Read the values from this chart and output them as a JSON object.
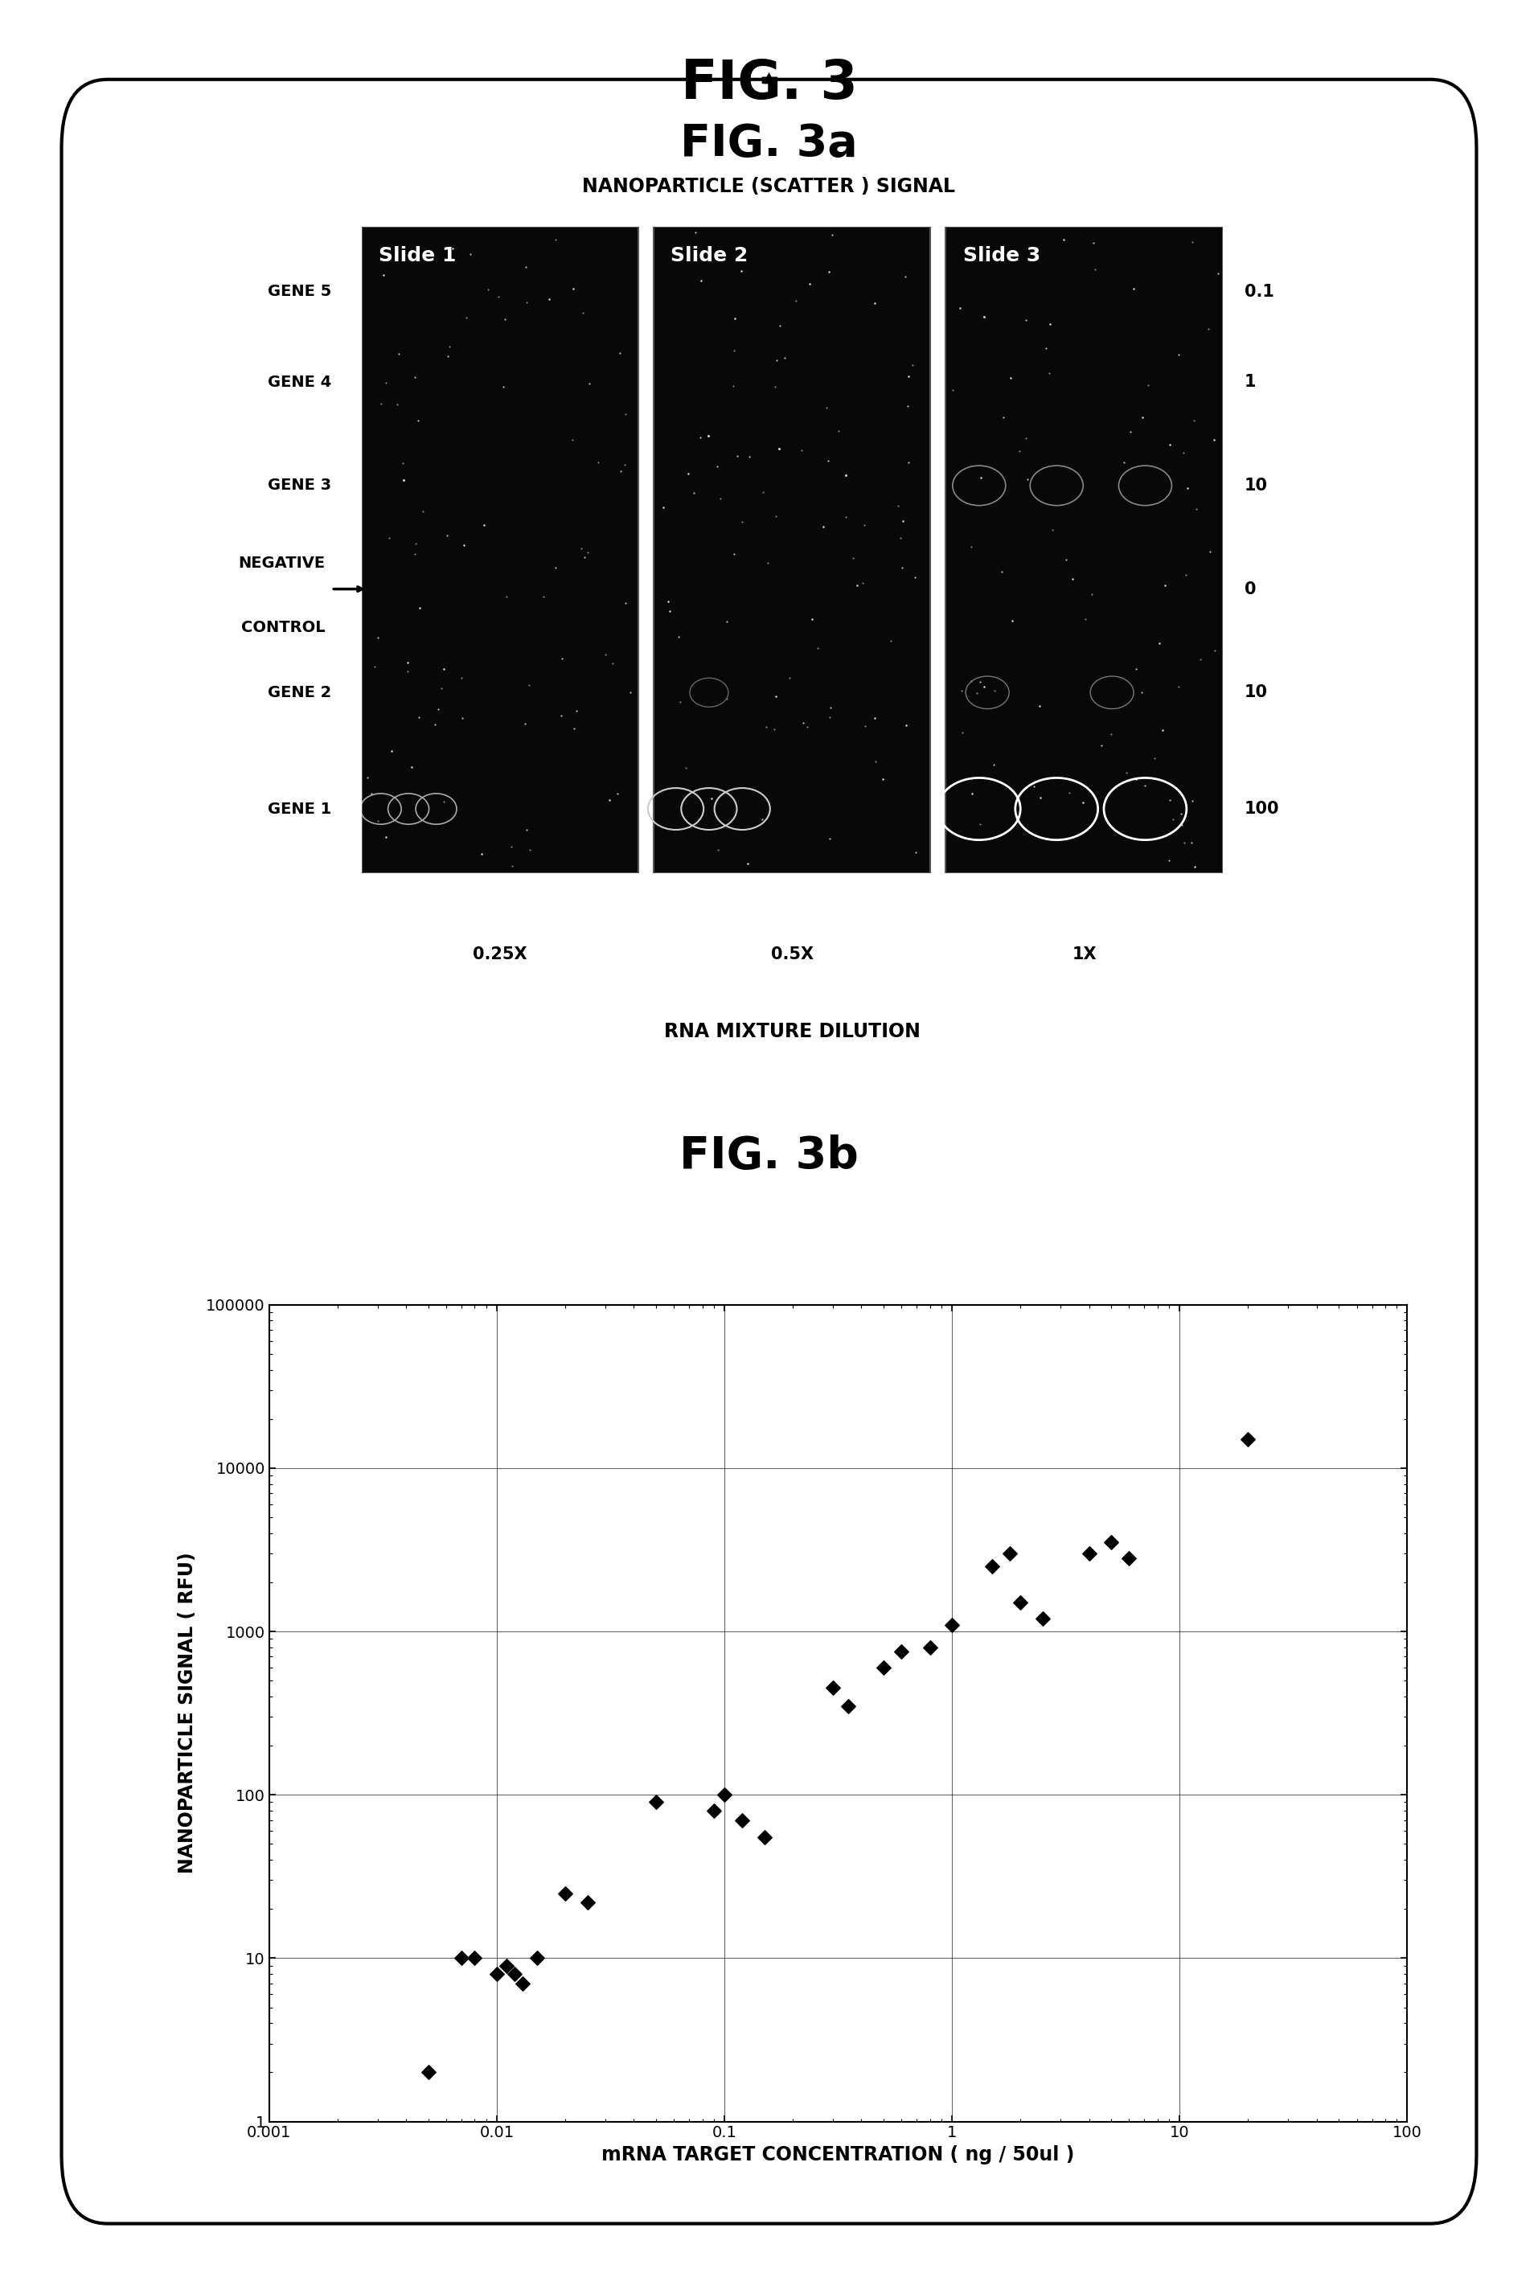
{
  "fig_title": "FIG. 3",
  "fig3a_title": "FIG. 3a",
  "fig3a_subtitle": "NANOPARTICLE (SCATTER ) SIGNAL",
  "slide_labels": [
    "Slide 1",
    "Slide 2",
    "Slide 3"
  ],
  "dilution_labels": [
    "0.25X",
    "0.5X",
    "1X"
  ],
  "dilution_xlabel": "RNA MIXTURE DILUTION",
  "gene_labels_display": [
    "GENE 5",
    "GENE 4",
    "GENE 3",
    "NEGATIVE\nCONTROL",
    "GENE 2",
    "GENE 1"
  ],
  "conc_labels_right": [
    "0.1",
    "1",
    "10",
    "0",
    "10",
    "100"
  ],
  "fig3b_title": "FIG. 3b",
  "scatter_x": [
    0.005,
    0.007,
    0.008,
    0.01,
    0.011,
    0.012,
    0.013,
    0.015,
    0.02,
    0.025,
    0.05,
    0.09,
    0.1,
    0.12,
    0.15,
    0.3,
    0.35,
    0.5,
    0.6,
    0.8,
    1.0,
    1.5,
    1.8,
    2.0,
    2.5,
    4.0,
    5.0,
    6.0,
    20.0
  ],
  "scatter_y": [
    2,
    10,
    10,
    8,
    9,
    8,
    7,
    10,
    25,
    22,
    90,
    80,
    100,
    70,
    55,
    450,
    350,
    600,
    750,
    800,
    1100,
    2500,
    3000,
    1500,
    1200,
    3000,
    3500,
    2800,
    15000
  ],
  "scatter_xlabel": "mRNA TARGET CONCENTRATION ( ng / 50ul )",
  "scatter_ylabel": "NANOPARTICLE SIGNAL ( RFU)",
  "scatter_xlim": [
    0.001,
    100
  ],
  "scatter_ylim": [
    1,
    100000
  ]
}
